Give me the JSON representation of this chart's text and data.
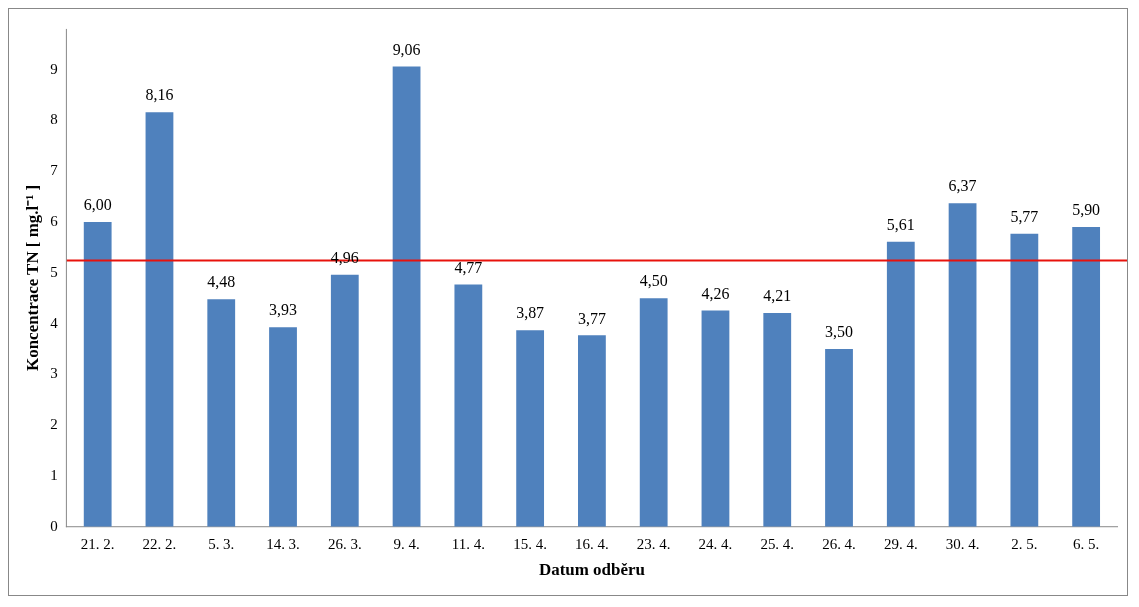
{
  "chart_data": {
    "type": "bar",
    "xlabel": "Datum odběru",
    "ylabel": "Koncentrace TN [ mg.l⁻¹ ]",
    "categories": [
      "21. 2.",
      "22. 2.",
      "5. 3.",
      "14. 3.",
      "26. 3.",
      "9. 4.",
      "11. 4.",
      "15. 4.",
      "16. 4.",
      "23. 4.",
      "24. 4.",
      "25. 4.",
      "26. 4.",
      "29. 4.",
      "30. 4.",
      "2. 5.",
      "6. 5."
    ],
    "values": [
      6.0,
      8.16,
      4.48,
      3.93,
      4.96,
      9.06,
      4.77,
      3.87,
      3.77,
      4.5,
      4.26,
      4.21,
      3.5,
      5.61,
      6.37,
      5.77,
      5.9
    ],
    "value_labels": [
      "6,00",
      "8,16",
      "4,48",
      "3,93",
      "4,96",
      "9,06",
      "4,77",
      "3,87",
      "3,77",
      "4,50",
      "4,26",
      "4,21",
      "3,50",
      "5,61",
      "6,37",
      "5,77",
      "5,90"
    ],
    "color": "#4f81bd",
    "ylim": [
      0,
      9.8
    ],
    "yticks": [
      0,
      1,
      2,
      3,
      4,
      5,
      6,
      7,
      8,
      9
    ],
    "grid": false,
    "legend": false,
    "ref_lines": [
      {
        "axis": "y",
        "value": 5.24,
        "color": "#e8120c",
        "line_style": "solid"
      }
    ]
  }
}
